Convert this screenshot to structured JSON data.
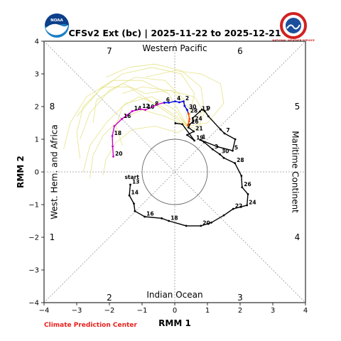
{
  "title": "CFSv2 Ext (bc) | 2025-11-22 to 2025-12-21",
  "credit": "Climate Prediction Center",
  "logos": {
    "left": "NOAA",
    "right": "NATIONAL WEATHER SERVICE"
  },
  "chart_data": {
    "type": "line",
    "xlabel": "RMM 1",
    "ylabel": "RMM 2",
    "xlim": [
      -4,
      4
    ],
    "ylim": [
      -4,
      4
    ],
    "xticks": [
      "−4",
      "−3",
      "−2",
      "−1",
      "0",
      "1",
      "2",
      "3",
      "4"
    ],
    "yticks": [
      "−4",
      "−3",
      "−2",
      "−1",
      "0",
      "1",
      "2",
      "3",
      "4"
    ],
    "region_labels": {
      "top": "Western Pacific",
      "bottom": "Indian Ocean",
      "left": "West. Hem. and Africa",
      "right": "Maritime Continent"
    },
    "phase_numbers": [
      "1",
      "2",
      "3",
      "4",
      "5",
      "6",
      "7",
      "8"
    ],
    "colors": {
      "observed": "#000000",
      "segment_a": "#cc00cc",
      "segment_b": "#0000dd",
      "segment_c": "#ff4400",
      "ensemble": "#e6e38a",
      "circle": "#666666",
      "diagonals": "#999999"
    },
    "observed_track": {
      "start_label": "start",
      "points": [
        {
          "x": -1.36,
          "y": -0.39,
          "label": "13"
        },
        {
          "x": -1.39,
          "y": -0.72,
          "label": "14"
        },
        {
          "x": -1.25,
          "y": -0.97
        },
        {
          "x": -1.22,
          "y": -1.2
        },
        {
          "x": -0.92,
          "y": -1.37,
          "label": "16"
        },
        {
          "x": -0.4,
          "y": -1.42
        },
        {
          "x": -0.18,
          "y": -1.5,
          "label": "18"
        },
        {
          "x": 0.35,
          "y": -1.65
        },
        {
          "x": 0.8,
          "y": -1.65,
          "label": "20"
        },
        {
          "x": 1.12,
          "y": -1.55
        },
        {
          "x": 1.5,
          "y": -1.33
        },
        {
          "x": 1.79,
          "y": -1.13,
          "label": "22"
        },
        {
          "x": 2.02,
          "y": -1.07
        },
        {
          "x": 2.21,
          "y": -1.02,
          "label": "24"
        },
        {
          "x": 2.24,
          "y": -0.68
        },
        {
          "x": 2.06,
          "y": -0.47,
          "label": "26"
        },
        {
          "x": 2.04,
          "y": -0.12
        },
        {
          "x": 1.84,
          "y": 0.27,
          "label": "28"
        },
        {
          "x": 1.5,
          "y": 0.43
        },
        {
          "x": 1.38,
          "y": 0.54,
          "label": "30"
        },
        {
          "x": 1.16,
          "y": 0.69,
          "label": "3"
        },
        {
          "x": 0.9,
          "y": 0.91
        },
        {
          "x": 0.78,
          "y": 0.98,
          "label": "1"
        },
        {
          "x": 1.31,
          "y": 0.77
        },
        {
          "x": 1.77,
          "y": 0.65,
          "label": "5"
        },
        {
          "x": 1.85,
          "y": 1.0
        },
        {
          "x": 1.52,
          "y": 1.18,
          "label": "7"
        },
        {
          "x": 1.4,
          "y": 1.3
        },
        {
          "x": 1.03,
          "y": 1.7
        },
        {
          "x": 0.92,
          "y": 1.86,
          "label": "9"
        },
        {
          "x": 0.83,
          "y": 1.91
        },
        {
          "x": 0.77,
          "y": 1.85,
          "label": "11"
        },
        {
          "x": 0.55,
          "y": 1.65
        },
        {
          "x": 0.56,
          "y": 1.54,
          "label": "24"
        },
        {
          "x": 0.45,
          "y": 1.45,
          "label": "26"
        },
        {
          "x": 0.42,
          "y": 1.36
        },
        {
          "x": 0.58,
          "y": 1.24,
          "label": "21"
        },
        {
          "x": 0.38,
          "y": 1.13
        },
        {
          "x": 0.6,
          "y": 0.96,
          "label": "19"
        },
        {
          "x": 0.23,
          "y": 1.46
        },
        {
          "x": 0.02,
          "y": 1.49
        }
      ]
    },
    "forecast_segments": [
      {
        "color": "segment_a",
        "points": [
          {
            "x": -1.88,
            "y": 0.47,
            "label": "20"
          },
          {
            "x": -1.9,
            "y": 0.78
          },
          {
            "x": -1.91,
            "y": 1.1,
            "label": "18"
          },
          {
            "x": -1.85,
            "y": 1.4
          },
          {
            "x": -1.62,
            "y": 1.62,
            "label": "16"
          },
          {
            "x": -1.47,
            "y": 1.73
          },
          {
            "x": -1.3,
            "y": 1.86,
            "label": "14"
          },
          {
            "x": -1.05,
            "y": 1.92,
            "label": "12"
          },
          {
            "x": -0.9,
            "y": 1.9,
            "label": "10"
          },
          {
            "x": -0.66,
            "y": 2.0,
            "label": "8"
          },
          {
            "x": -0.52,
            "y": 2.07
          },
          {
            "x": -0.32,
            "y": 2.12,
            "label": "6"
          }
        ]
      },
      {
        "color": "segment_b",
        "points": [
          {
            "x": -0.32,
            "y": 2.12
          },
          {
            "x": -0.18,
            "y": 2.12
          },
          {
            "x": 0.01,
            "y": 2.16,
            "label": "4"
          },
          {
            "x": 0.14,
            "y": 2.13
          },
          {
            "x": 0.27,
            "y": 2.16,
            "label": "2"
          },
          {
            "x": 0.3,
            "y": 2.02
          },
          {
            "x": 0.38,
            "y": 1.9,
            "label": "30"
          },
          {
            "x": 0.42,
            "y": 1.78,
            "label": "28"
          }
        ]
      },
      {
        "color": "segment_c",
        "points": [
          {
            "x": 0.42,
            "y": 1.78
          },
          {
            "x": 0.45,
            "y": 1.62
          },
          {
            "x": 0.44,
            "y": 1.55
          },
          {
            "x": 0.4,
            "y": 1.43
          }
        ]
      }
    ],
    "ensemble_members": [
      [
        [
          0.4,
          1.4
        ],
        [
          0.0,
          1.9
        ],
        [
          -0.7,
          2.3
        ],
        [
          -1.5,
          2.1
        ],
        [
          -2.1,
          1.5
        ],
        [
          -2.6,
          0.8
        ],
        [
          -2.8,
          0.0
        ]
      ],
      [
        [
          0.4,
          1.4
        ],
        [
          0.3,
          2.2
        ],
        [
          -0.3,
          2.8
        ],
        [
          -1.2,
          2.9
        ],
        [
          -2.0,
          2.5
        ],
        [
          -2.6,
          1.8
        ],
        [
          -2.9,
          1.0
        ]
      ],
      [
        [
          0.4,
          1.4
        ],
        [
          0.6,
          2.4
        ],
        [
          0.2,
          3.0
        ],
        [
          -0.7,
          3.2
        ],
        [
          -1.6,
          3.0
        ],
        [
          -2.3,
          2.5
        ],
        [
          -3.0,
          1.7
        ]
      ],
      [
        [
          0.4,
          1.4
        ],
        [
          -0.3,
          1.7
        ],
        [
          -1.0,
          1.9
        ],
        [
          -1.7,
          1.6
        ],
        [
          -2.2,
          1.1
        ],
        [
          -2.5,
          0.5
        ],
        [
          -2.6,
          -0.2
        ]
      ],
      [
        [
          0.4,
          1.4
        ],
        [
          0.9,
          1.9
        ],
        [
          0.8,
          2.6
        ],
        [
          0.2,
          3.1
        ],
        [
          -0.6,
          3.3
        ],
        [
          -1.4,
          3.2
        ],
        [
          -2.1,
          2.9
        ]
      ],
      [
        [
          0.4,
          1.4
        ],
        [
          0.1,
          1.2
        ],
        [
          -0.6,
          1.4
        ],
        [
          -1.3,
          1.3
        ],
        [
          -1.8,
          0.9
        ],
        [
          -2.1,
          0.4
        ],
        [
          -2.2,
          -0.1
        ]
      ],
      [
        [
          0.4,
          1.4
        ],
        [
          -0.2,
          2.4
        ],
        [
          -1.0,
          2.8
        ],
        [
          -1.9,
          2.8
        ],
        [
          -2.7,
          2.3
        ],
        [
          -3.2,
          1.5
        ],
        [
          -3.4,
          0.7
        ]
      ],
      [
        [
          0.4,
          1.4
        ],
        [
          1.0,
          1.5
        ],
        [
          1.5,
          2.1
        ],
        [
          1.4,
          2.7
        ],
        [
          0.8,
          3.0
        ],
        [
          0.0,
          3.1
        ],
        [
          -0.9,
          2.9
        ]
      ],
      [
        [
          0.4,
          1.4
        ],
        [
          0.2,
          1.6
        ],
        [
          -0.4,
          2.0
        ],
        [
          -1.1,
          2.3
        ],
        [
          -1.6,
          2.0
        ],
        [
          -1.8,
          1.4
        ],
        [
          -1.6,
          0.8
        ]
      ],
      [
        [
          0.4,
          1.4
        ],
        [
          0.7,
          1.3
        ],
        [
          0.9,
          1.8
        ],
        [
          0.6,
          2.3
        ],
        [
          -0.2,
          2.5
        ],
        [
          -1.0,
          2.6
        ],
        [
          -1.6,
          2.4
        ]
      ],
      [
        [
          0.4,
          1.4
        ],
        [
          -0.5,
          2.0
        ],
        [
          -1.4,
          2.6
        ],
        [
          -2.2,
          2.6
        ],
        [
          -2.8,
          2.0
        ],
        [
          -3.0,
          1.2
        ],
        [
          -2.9,
          0.4
        ]
      ],
      [
        [
          0.4,
          1.4
        ],
        [
          0.5,
          1.9
        ],
        [
          -0.1,
          2.5
        ],
        [
          -0.9,
          2.4
        ],
        [
          -1.6,
          2.7
        ],
        [
          -2.4,
          2.2
        ],
        [
          -2.5,
          1.5
        ]
      ]
    ]
  }
}
